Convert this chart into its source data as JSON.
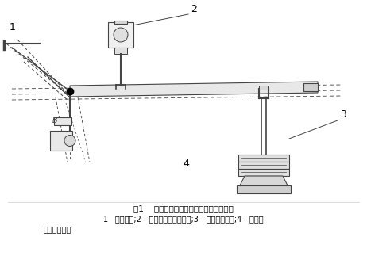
{
  "title": "图1    测力杠杆校准拉力试验机工作状态图",
  "caption_line1": "1—杠杆力点;2—拉力试验机上连接件;3—杠杆配套砝码;4—拉力试",
  "caption_line2": "验机下连接件",
  "bg_color": "#ffffff",
  "line_color": "#444444",
  "label1": "1",
  "label2": "2",
  "label3": "3",
  "label4": "4",
  "label_B": "B"
}
